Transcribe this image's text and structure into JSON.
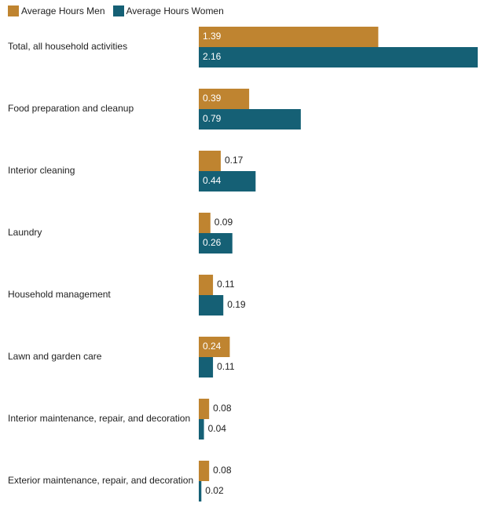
{
  "colors": {
    "men": "#bf8430",
    "women": "#156075"
  },
  "chart_data": {
    "type": "bar",
    "orientation": "horizontal",
    "categories": [
      "Total, all household activities",
      "Food preparation and cleanup",
      "Interior cleaning",
      "Laundry",
      "Household management",
      "Lawn and garden care",
      "Interior maintenance, repair, and decoration",
      "Exterior maintenance, repair, and decoration"
    ],
    "series": [
      {
        "name": "Average Hours Men",
        "values": [
          1.39,
          0.39,
          0.17,
          0.09,
          0.11,
          0.24,
          0.08,
          0.08
        ]
      },
      {
        "name": "Average Hours Women",
        "values": [
          2.16,
          0.79,
          0.44,
          0.26,
          0.19,
          0.11,
          0.04,
          0.02
        ]
      }
    ],
    "value_labels": [
      [
        "1.39",
        "0.39",
        "0.17",
        "0.09",
        "0.11",
        "0.24",
        "0.08",
        "0.08"
      ],
      [
        "2.16",
        "0.79",
        "0.44",
        "0.26",
        "0.19",
        "0.11",
        "0.04",
        "0.02"
      ]
    ],
    "legend": "top-left",
    "grid": false,
    "xlim": [
      0,
      2.16
    ]
  }
}
